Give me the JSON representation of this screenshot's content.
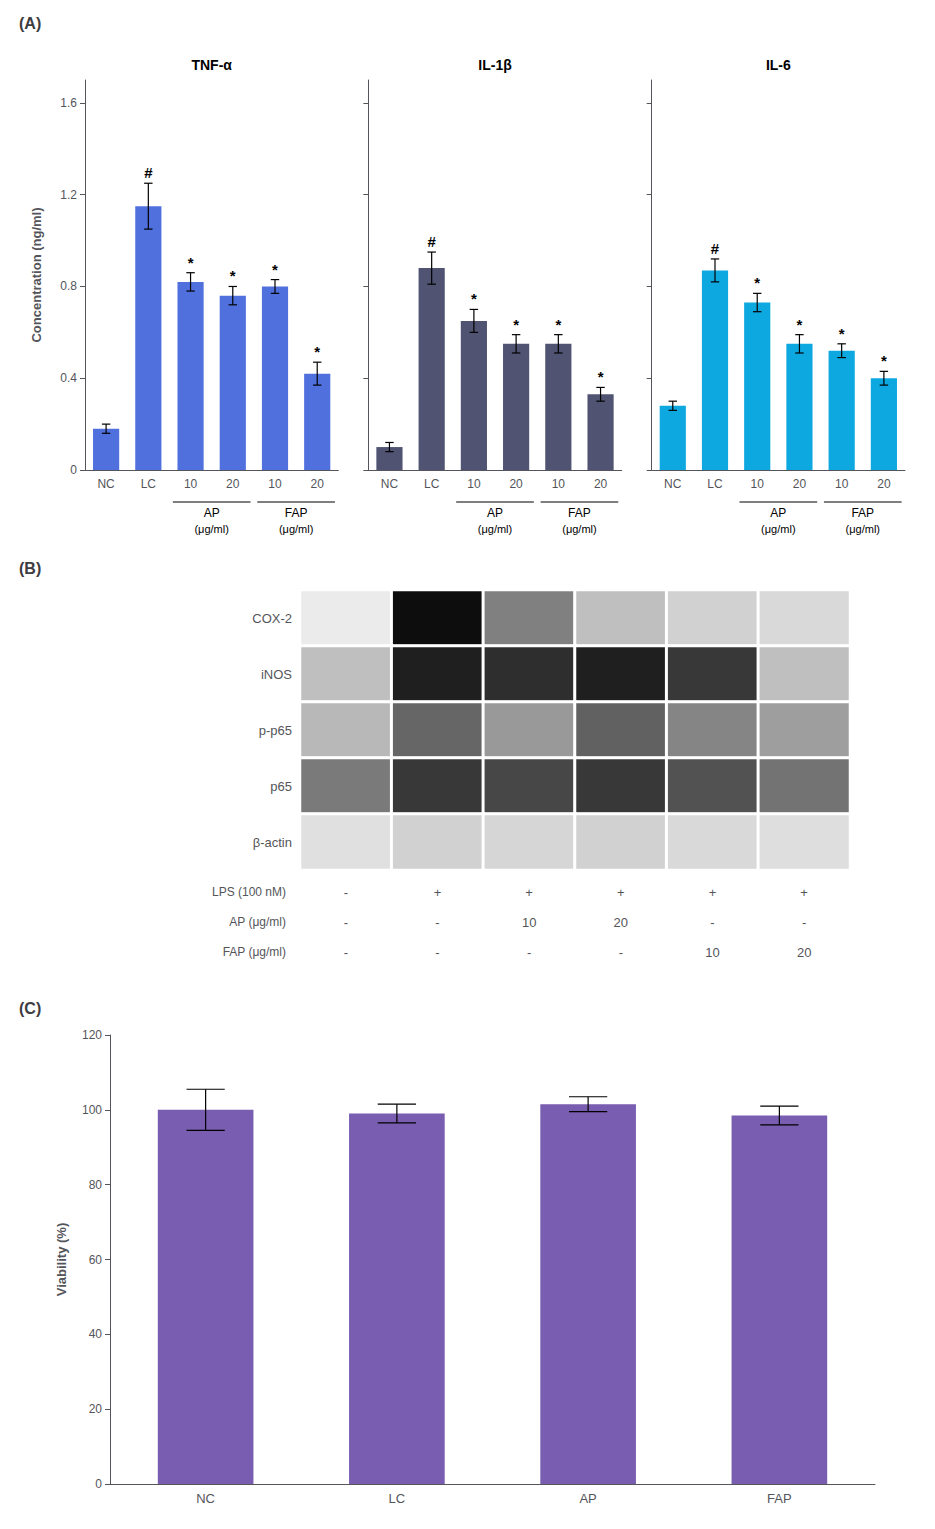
{
  "chart_data": [
    {
      "type": "bar",
      "title": "(A)",
      "categories": [
        "NC",
        "LC",
        "10",
        "20",
        "10",
        "20"
      ],
      "category_groups": [
        null,
        null,
        "AP",
        "AP",
        "FAP",
        "FAP"
      ],
      "category_group_note": "(μg/ml)",
      "series": [
        {
          "name": "TNF-α",
          "values": [
            0.18,
            1.15,
            0.82,
            0.76,
            0.8,
            0.42
          ],
          "errors": [
            0.02,
            0.1,
            0.04,
            0.04,
            0.03,
            0.05
          ],
          "annotations": [
            null,
            "#",
            "*",
            "*",
            "*",
            "*"
          ]
        },
        {
          "name": "IL-1β",
          "values": [
            0.1,
            0.88,
            0.65,
            0.55,
            0.55,
            0.33
          ],
          "errors": [
            0.02,
            0.07,
            0.05,
            0.04,
            0.04,
            0.03
          ],
          "annotations": [
            null,
            "#",
            "*",
            "*",
            "*",
            "*"
          ]
        },
        {
          "name": "IL-6",
          "values": [
            0.28,
            0.87,
            0.73,
            0.55,
            0.52,
            0.4
          ],
          "errors": [
            0.02,
            0.05,
            0.04,
            0.04,
            0.03,
            0.03
          ],
          "annotations": [
            null,
            "#",
            "*",
            "*",
            "*",
            "*"
          ]
        }
      ],
      "ylabel": "Concentration (ng/ml)",
      "ylim": [
        0,
        1.7
      ],
      "yticks": [
        0,
        0.4,
        0.8,
        1.2,
        1.6
      ],
      "grid": false
    },
    {
      "type": "heatmap",
      "title": "(B)",
      "categories": [
        "COX-2",
        "iNOS",
        "p-p65",
        "p65",
        "β-actin"
      ],
      "x_rows": [
        {
          "label": "LPS (100 nM)",
          "values": [
            "-",
            "+",
            "+",
            "+",
            "+",
            "+"
          ]
        },
        {
          "label": "AP (μg/ml)",
          "values": [
            "-",
            "-",
            "10",
            "20",
            "-",
            "-"
          ]
        },
        {
          "label": "FAP (μg/ml)",
          "values": [
            "-",
            "-",
            "-",
            "-",
            "10",
            "20"
          ]
        }
      ],
      "values": [
        [
          0.08,
          0.95,
          0.5,
          0.25,
          0.18,
          0.15
        ],
        [
          0.25,
          0.88,
          0.82,
          0.88,
          0.78,
          0.25
        ],
        [
          0.28,
          0.6,
          0.4,
          0.62,
          0.48,
          0.38
        ],
        [
          0.52,
          0.78,
          0.72,
          0.78,
          0.68,
          0.55
        ],
        [
          0.12,
          0.18,
          0.16,
          0.18,
          0.15,
          0.13
        ]
      ],
      "zlim": [
        0,
        1
      ],
      "color": "#000000"
    },
    {
      "type": "bar",
      "title": "(C)",
      "categories": [
        "NC",
        "LC",
        "AP",
        "FAP"
      ],
      "values": [
        100.0,
        99.0,
        101.5,
        98.5
      ],
      "errors": [
        5.5,
        2.5,
        2.0,
        2.5
      ],
      "ylabel": "Viability (%)",
      "ylim": [
        0,
        120
      ],
      "yticks": [
        0,
        20,
        40,
        60,
        80,
        100,
        120
      ],
      "grid": false
    }
  ]
}
